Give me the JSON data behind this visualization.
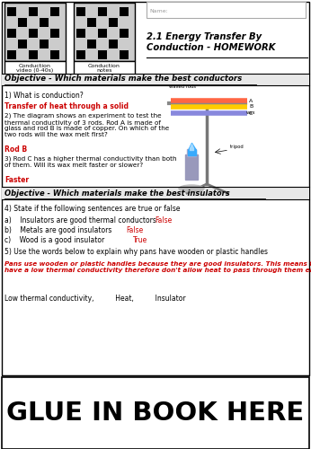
{
  "bg_color": "#ffffff",
  "border_color": "#000000",
  "title": "2.1 Energy Transfer By\nConduction - HOMEWORK",
  "name_label": "Name:",
  "qr1_label": "Conduction\nvideo (0-40s)",
  "qr2_label": "Conduction\nnotes",
  "objective1": "Objective - Which materials make the best conductors",
  "q1": "1) What is conduction?",
  "a1_red": "Transfer of heat through a solid",
  "q2": "2) The diagram shows an experiment to test the\nthermal conductivity of 3 rods. Rod A is made of\nglass and rod B is made of copper. On which of the\ntwo rods will the wax melt first?",
  "a2_red": "Rod B",
  "q3": "3) Rod C has a higher thermal conductivity than both\nof them. Will its wax melt faster or slower?",
  "a3_red": "Faster",
  "objective2": "Objective - Which materials make the best insulators",
  "q4": "4) State if the following sentences are true or false",
  "q4a_black": "a)    Insulators are good thermal conductors",
  "q4a_red": "False",
  "q4b_black": "b)    Metals are good insulators",
  "q4b_red": "False",
  "q4c_black": "c)    Wood is a good insulator",
  "q4c_red": "True",
  "q5": "5) Use the words below to explain why pans have wooden or plastic handles",
  "a5_red": "Pans use wooden or plastic handles because they are good insulators. This means they\nhave a low thermal conductivity therefore don't allow heat to pass through them easily",
  "word_bank": "Low thermal conductivity,          Heat,          Insulator",
  "glue": "GLUE IN BOOK HERE",
  "red": "#cc0000",
  "black": "#000000",
  "obj_bg": "#e8e8e8",
  "rod_colors": [
    "#ff6644",
    "#ffcc00",
    "#8888dd"
  ],
  "rod_labels": [
    "A",
    "B",
    "C"
  ]
}
